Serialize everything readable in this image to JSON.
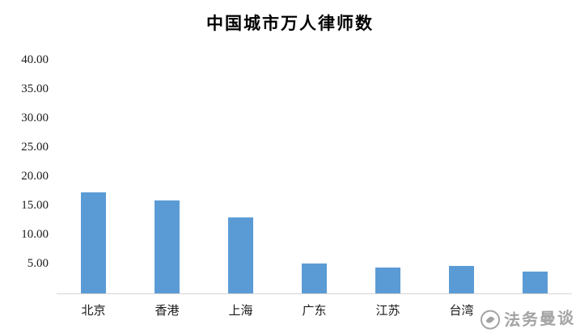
{
  "chart_data": {
    "type": "bar",
    "title": "中国城市万人律师数",
    "categories": [
      "北京",
      "香港",
      "上海",
      "广东",
      "江苏",
      "台湾",
      ""
    ],
    "values": [
      17.3,
      16.0,
      13.1,
      5.2,
      4.4,
      4.7,
      3.7
    ],
    "ylim": [
      0,
      40
    ],
    "y_ticks": [
      "40.00",
      "35.00",
      "30.00",
      "25.00",
      "20.00",
      "15.00",
      "10.00",
      "5.00"
    ],
    "xlabel": "",
    "ylabel": "",
    "grid": false,
    "legend_position": "none",
    "bar_color": "#5b9bd5"
  },
  "watermark": {
    "text": "法务曼谈"
  }
}
